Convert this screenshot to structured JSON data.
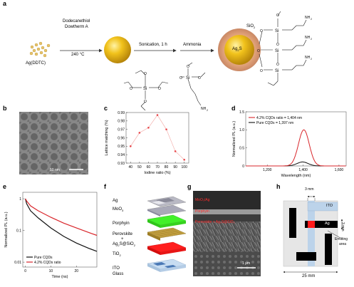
{
  "panels": {
    "a": {
      "label": "a",
      "precursor": "Ag(DDTC)",
      "cond1_line1": "Dodecanethiol",
      "cond1_line2": "Dowtherm A",
      "cond1_temp": "240 °C",
      "step2": "Sonication, 1 h",
      "step3": "Ammonia",
      "shell": "SiO",
      "shell_sub": "2",
      "core": "Ag",
      "core_sub": "2",
      "core_s": "S",
      "si": "Si",
      "o": "O",
      "nh2": "NH",
      "nh2_sub": "2"
    },
    "b": {
      "label": "b",
      "scale_bar": "10 nm"
    },
    "c": {
      "label": "c"
    },
    "d": {
      "label": "d"
    },
    "e": {
      "label": "e"
    },
    "f": {
      "label": "f",
      "layers": [
        "Ag",
        "MoO",
        "Porphyin",
        "Perovskite",
        "+",
        "Ag",
        "S@SiO",
        "TiO",
        "ITO",
        "Glass"
      ],
      "subs": [
        "3",
        "2",
        "2",
        "2"
      ]
    },
    "g": {
      "label": "g",
      "tag1": "MoO₃/Ag",
      "tag2": "Porphyin",
      "tag3": "Perovskite + Ag₂S@SiO₂",
      "scale_bar": "1 μm"
    },
    "h": {
      "label": "h",
      "dim_top": "3 mm",
      "dim_side": "3 mm",
      "ito": "ITO",
      "ag": "Ag",
      "emitting": "Emitting",
      "area": "area",
      "dim_bottom": "25 mm"
    }
  },
  "chart_data": [
    {
      "panel": "c",
      "type": "line",
      "xlabel": "Iodine ratio (%)",
      "ylabel": "Lattice matching (%)",
      "xticks": [
        40,
        50,
        60,
        70,
        80,
        90,
        100
      ],
      "yticks": [
        0.93,
        0.94,
        0.95,
        0.96,
        0.97,
        0.98,
        0.99
      ],
      "xlim": [
        35,
        105
      ],
      "ylim": [
        0.93,
        0.99
      ],
      "x": [
        40,
        50,
        60,
        70,
        80,
        90,
        100
      ],
      "y": [
        0.95,
        0.966,
        0.972,
        0.987,
        0.97,
        0.944,
        0.934
      ],
      "color": "#e8474b"
    },
    {
      "panel": "d",
      "type": "line",
      "xlabel": "Wavelength (nm)",
      "ylabel": "Normalized PL (a.u.)",
      "xticks": [
        1200,
        1400,
        1600
      ],
      "xtick_labels": [
        "1,200",
        "1,400",
        "1,600"
      ],
      "yticks": [
        0,
        0.5,
        1.0,
        1.5
      ],
      "ytick_labels": [
        "0",
        "0.5",
        "1.0",
        "1.5"
      ],
      "xlim": [
        1080,
        1640
      ],
      "ylim": [
        0,
        1.5
      ],
      "legend": "top-left",
      "series": [
        {
          "name": "4.2% CQDs ratio = 1,404 nm",
          "color": "#d9262b",
          "peak": 1404,
          "amp": 1.0,
          "width": 33
        },
        {
          "name": "Pure CQDs = 1,397 nm",
          "color": "#111111",
          "peak": 1397,
          "amp": 0.11,
          "width": 34
        }
      ]
    },
    {
      "panel": "e",
      "type": "line",
      "xlabel": "Time (ns)",
      "ylabel": "Normalized PL (a.u.)",
      "xscale": "linear",
      "yscale": "log",
      "xticks": [
        0,
        10,
        20
      ],
      "yticks": [
        0.01,
        0.1,
        1
      ],
      "ytick_labels": [
        "0.01",
        "0.1",
        "1"
      ],
      "xlim": [
        -1,
        28
      ],
      "ylim": [
        0.007,
        1.6
      ],
      "legend": "bottom-left",
      "series": [
        {
          "name": "Pure CQDs",
          "color": "#111111",
          "points": [
            [
              0,
              1.0
            ],
            [
              0.5,
              0.7
            ],
            [
              2,
              0.42
            ],
            [
              5,
              0.25
            ],
            [
              10,
              0.12
            ],
            [
              15,
              0.065
            ],
            [
              20,
              0.04
            ],
            [
              25,
              0.027
            ],
            [
              28,
              0.022
            ]
          ]
        },
        {
          "name": "4.2% CQDs ratio",
          "color": "#d9262b",
          "points": [
            [
              0,
              1.0
            ],
            [
              0.5,
              0.85
            ],
            [
              2,
              0.6
            ],
            [
              5,
              0.42
            ],
            [
              10,
              0.26
            ],
            [
              15,
              0.17
            ],
            [
              20,
              0.12
            ],
            [
              25,
              0.085
            ],
            [
              28,
              0.07
            ]
          ]
        }
      ]
    }
  ]
}
